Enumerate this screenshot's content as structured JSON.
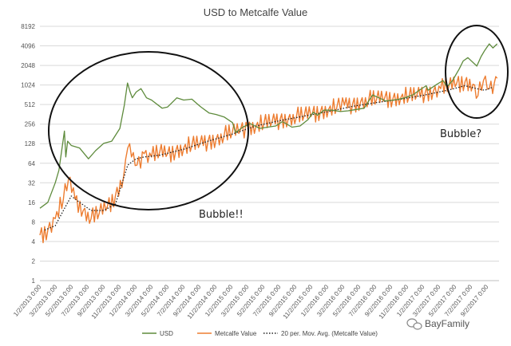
{
  "chart_data": {
    "type": "line",
    "title": "USD to Metcalfe Value",
    "y_scale": "log2",
    "ylim": [
      1,
      8192
    ],
    "y_ticks": [
      "8192",
      "4096",
      "2048",
      "1024",
      "512",
      "256",
      "128",
      "64",
      "32",
      "16",
      "8",
      "4",
      "2",
      "1"
    ],
    "x_ticks": [
      "1/2/2013 0:00",
      "3/2/2013 0:00",
      "5/2/2013 0:00",
      "7/2/2013 0:00",
      "9/2/2013 0:00",
      "11/2/2013 0:00",
      "1/2/2014 0:00",
      "3/2/2014 0:00",
      "5/2/2014 0:00",
      "7/2/2014 0:00",
      "9/2/2014 0:00",
      "11/2/2014 0:00",
      "1/2/2015 0:00",
      "3/2/2015 0:00",
      "5/2/2015 0:00",
      "7/2/2015 0:00",
      "9/2/2015 0:00",
      "11/2/2015 0:00",
      "1/2/2016 0:00",
      "3/2/2016 0:00",
      "5/2/2016 0:00",
      "7/2/2016 0:00",
      "9/2/2016 0:00",
      "11/2/2016 0:00",
      "1/2/2017 0:00",
      "3/2/2017 0:00",
      "5/2/2017 0:00",
      "7/2/2017 0:00",
      "9/2/2017 0:00"
    ],
    "grid": true,
    "legend_position": "bottom",
    "series": [
      {
        "name": "USD",
        "color": "#5e8b3c",
        "style": "solid",
        "x": [
          "2013-01-02",
          "2013-02-01",
          "2013-03-01",
          "2013-03-15",
          "2013-04-05",
          "2013-04-10",
          "2013-04-17",
          "2013-05-01",
          "2013-06-01",
          "2013-07-05",
          "2013-08-01",
          "2013-09-01",
          "2013-10-01",
          "2013-11-01",
          "2013-11-18",
          "2013-11-30",
          "2013-12-10",
          "2013-12-18",
          "2014-01-02",
          "2014-01-20",
          "2014-02-10",
          "2014-03-01",
          "2014-04-10",
          "2014-05-01",
          "2014-06-05",
          "2014-07-01",
          "2014-08-01",
          "2014-09-01",
          "2014-10-05",
          "2014-11-01",
          "2014-12-01",
          "2015-01-02",
          "2015-01-14",
          "2015-02-10",
          "2015-03-10",
          "2015-04-15",
          "2015-05-15",
          "2015-06-15",
          "2015-07-10",
          "2015-08-15",
          "2015-09-15",
          "2015-10-15",
          "2015-11-04",
          "2015-11-20",
          "2015-12-15",
          "2016-01-15",
          "2016-02-15",
          "2016-03-15",
          "2016-04-15",
          "2016-05-15",
          "2016-06-16",
          "2016-07-10",
          "2016-08-05",
          "2016-09-15",
          "2016-10-15",
          "2016-11-15",
          "2016-12-15",
          "2017-01-05",
          "2017-01-12",
          "2017-02-15",
          "2017-03-10",
          "2017-03-25",
          "2017-04-15",
          "2017-05-10",
          "2017-05-25",
          "2017-06-12",
          "2017-07-16",
          "2017-08-01",
          "2017-08-15",
          "2017-09-01",
          "2017-09-15",
          "2017-10-01"
        ],
        "y": [
          13,
          16,
          32,
          50,
          200,
          80,
          140,
          120,
          110,
          75,
          100,
          130,
          140,
          220,
          500,
          1100,
          800,
          650,
          800,
          900,
          650,
          600,
          450,
          470,
          650,
          600,
          620,
          480,
          380,
          360,
          330,
          270,
          190,
          230,
          260,
          220,
          230,
          240,
          280,
          230,
          240,
          300,
          390,
          350,
          420,
          420,
          400,
          410,
          430,
          450,
          720,
          650,
          580,
          610,
          650,
          720,
          880,
          1000,
          850,
          1050,
          1200,
          960,
          1200,
          1800,
          2400,
          2700,
          2000,
          2800,
          3500,
          4400,
          3800,
          4400
        ]
      },
      {
        "name": "Metcalfe Value",
        "color": "#ed7d31",
        "style": "solid",
        "x": [
          "2013-01-02",
          "2013-02-01",
          "2013-03-01",
          "2013-04-01",
          "2013-04-20",
          "2013-05-15",
          "2013-06-15",
          "2013-07-15",
          "2013-08-15",
          "2013-09-15",
          "2013-10-15",
          "2013-11-15",
          "2013-12-01",
          "2013-12-15",
          "2014-01-05",
          "2014-02-01",
          "2014-03-01",
          "2014-04-01",
          "2014-05-01",
          "2014-06-01",
          "2014-07-01",
          "2014-08-01",
          "2014-09-01",
          "2014-10-01",
          "2014-11-01",
          "2014-12-01",
          "2015-01-01",
          "2015-02-01",
          "2015-03-01",
          "2015-04-01",
          "2015-05-01",
          "2015-06-01",
          "2015-07-01",
          "2015-08-01",
          "2015-09-01",
          "2015-10-01",
          "2015-11-01",
          "2015-12-01",
          "2016-01-01",
          "2016-02-01",
          "2016-03-01",
          "2016-04-01",
          "2016-05-01",
          "2016-06-01",
          "2016-07-01",
          "2016-08-01",
          "2016-09-01",
          "2016-10-01",
          "2016-11-01",
          "2016-12-01",
          "2017-01-01",
          "2017-02-01",
          "2017-03-01",
          "2017-04-01",
          "2017-05-01",
          "2017-06-01",
          "2017-07-01",
          "2017-07-20",
          "2017-08-10",
          "2017-09-01",
          "2017-09-20",
          "2017-10-01"
        ],
        "y": [
          5,
          6,
          9,
          18,
          36,
          18,
          12,
          9,
          11,
          14,
          20,
          40,
          110,
          80,
          60,
          90,
          80,
          95,
          90,
          100,
          110,
          120,
          130,
          140,
          150,
          170,
          190,
          210,
          230,
          240,
          260,
          280,
          300,
          310,
          330,
          350,
          380,
          400,
          430,
          460,
          500,
          520,
          560,
          600,
          620,
          650,
          640,
          660,
          680,
          720,
          780,
          820,
          900,
          980,
          1100,
          1150,
          1050,
          700,
          1200,
          900,
          1100,
          1300
        ]
      },
      {
        "name": "20 per. Mov. Avg. (Metcalfe Value)",
        "color": "#222222",
        "style": "dotted",
        "x": [
          "2013-01-20",
          "2013-03-01",
          "2013-04-01",
          "2013-05-01",
          "2013-06-01",
          "2013-07-15",
          "2013-09-01",
          "2013-10-15",
          "2013-12-01",
          "2014-01-01",
          "2014-02-01",
          "2014-04-01",
          "2014-07-01",
          "2014-10-01",
          "2015-01-01",
          "2015-04-01",
          "2015-07-01",
          "2015-10-01",
          "2016-01-01",
          "2016-04-01",
          "2016-07-01",
          "2016-10-01",
          "2017-01-01",
          "2017-04-01",
          "2017-06-01",
          "2017-07-15",
          "2017-08-15",
          "2017-09-15"
        ],
        "y": [
          6,
          7,
          12,
          20,
          16,
          12,
          12,
          15,
          60,
          75,
          80,
          85,
          105,
          140,
          180,
          240,
          290,
          340,
          400,
          480,
          550,
          620,
          720,
          860,
          1000,
          900,
          850,
          950
        ]
      }
    ]
  },
  "annotations": {
    "bubble_left": "Bubble!!",
    "bubble_right": "Bubble?"
  },
  "watermark": {
    "text": "BayFamily",
    "icon": "wechat-icon"
  }
}
